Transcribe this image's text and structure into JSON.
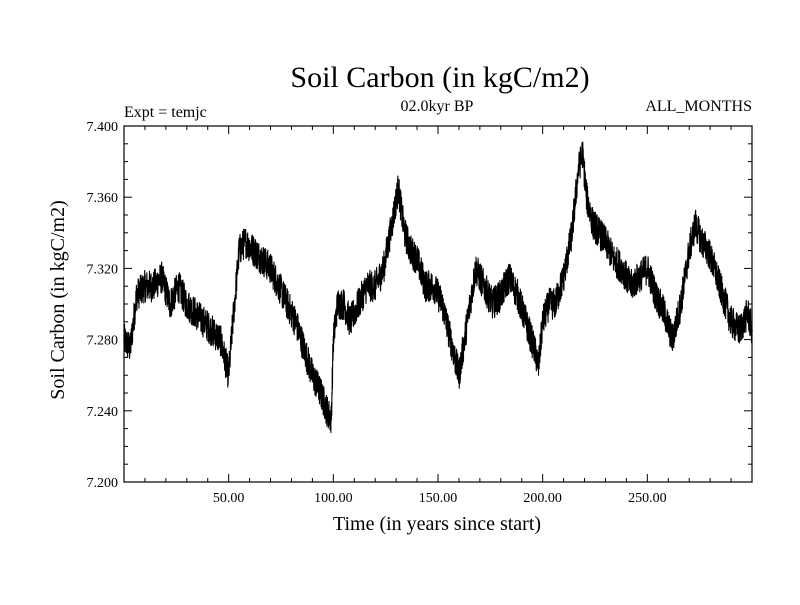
{
  "chart_data": {
    "type": "line",
    "title": "Soil Carbon (in kgC/m2)",
    "subtitle": "02.0kyr BP",
    "left_label": "Expt = temjc",
    "right_label": "ALL_MONTHS",
    "xlabel": "Time (in years since start)",
    "ylabel": "Soil Carbon (in kgC/m2)",
    "xlim": [
      0,
      300
    ],
    "ylim": [
      7.2,
      7.4
    ],
    "x_ticks": [
      50,
      100,
      150,
      200,
      250
    ],
    "x_tick_labels": [
      "50.00",
      "100.00",
      "150.00",
      "200.00",
      "250.00"
    ],
    "y_ticks": [
      7.2,
      7.24,
      7.28,
      7.32,
      7.36,
      7.4
    ],
    "y_tick_labels": [
      "7.200",
      "7.240",
      "7.280",
      "7.320",
      "7.360",
      "7.400"
    ],
    "grid": false,
    "series": [
      {
        "name": "Soil Carbon",
        "color": "#000000",
        "x": [
          0,
          3,
          6,
          10,
          14,
          18,
          22,
          26,
          30,
          34,
          38,
          42,
          46,
          50,
          52,
          55,
          58,
          62,
          66,
          70,
          74,
          78,
          82,
          86,
          90,
          94,
          97,
          99,
          100,
          102,
          105,
          108,
          112,
          116,
          120,
          124,
          128,
          131,
          134,
          137,
          140,
          144,
          148,
          152,
          156,
          160,
          164,
          168,
          172,
          176,
          180,
          184,
          188,
          192,
          196,
          198,
          200,
          203,
          206,
          210,
          214,
          217,
          219,
          221,
          224,
          227,
          230,
          234,
          238,
          242,
          246,
          250,
          254,
          258,
          262,
          266,
          270,
          273,
          276,
          279,
          282,
          286,
          290,
          294,
          298,
          300
        ],
        "values": [
          7.28,
          7.275,
          7.305,
          7.31,
          7.31,
          7.315,
          7.3,
          7.31,
          7.3,
          7.295,
          7.29,
          7.285,
          7.28,
          7.26,
          7.29,
          7.33,
          7.335,
          7.33,
          7.325,
          7.32,
          7.31,
          7.3,
          7.29,
          7.275,
          7.26,
          7.25,
          7.24,
          7.235,
          7.28,
          7.3,
          7.3,
          7.29,
          7.3,
          7.31,
          7.31,
          7.32,
          7.345,
          7.365,
          7.34,
          7.33,
          7.325,
          7.31,
          7.31,
          7.3,
          7.28,
          7.26,
          7.29,
          7.32,
          7.31,
          7.3,
          7.305,
          7.315,
          7.305,
          7.29,
          7.275,
          7.265,
          7.29,
          7.3,
          7.3,
          7.315,
          7.34,
          7.375,
          7.385,
          7.36,
          7.345,
          7.34,
          7.335,
          7.325,
          7.32,
          7.31,
          7.315,
          7.32,
          7.305,
          7.295,
          7.28,
          7.3,
          7.33,
          7.345,
          7.335,
          7.33,
          7.32,
          7.305,
          7.29,
          7.285,
          7.295,
          7.285
        ]
      }
    ]
  }
}
